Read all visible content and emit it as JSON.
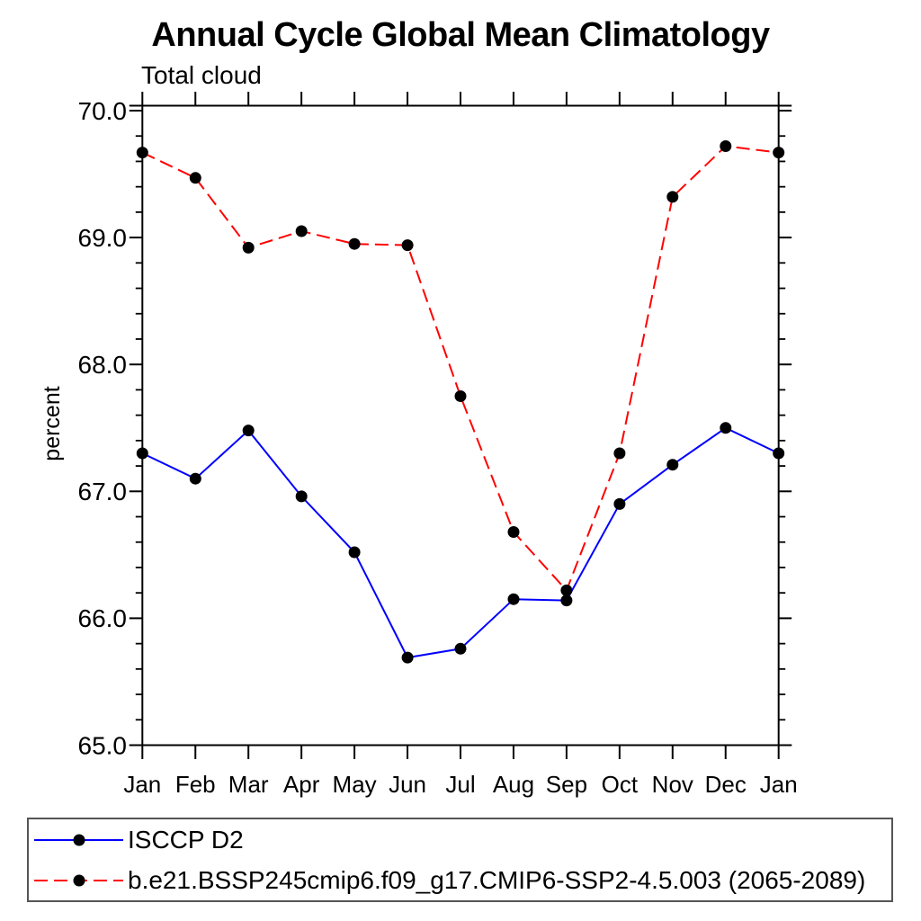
{
  "title": "Annual Cycle Global Mean Climatology",
  "subtitle": "Total cloud",
  "chart_data": {
    "type": "line",
    "title": "Annual Cycle Global Mean Climatology",
    "subtitle": "Total cloud",
    "xlabel": "",
    "ylabel": "percent",
    "ylim": [
      65.0,
      70.0
    ],
    "ytick_values": [
      65,
      66,
      67,
      68,
      69,
      70
    ],
    "ytick_labels": [
      "65.0",
      "66.0",
      "67.0",
      "68.0",
      "69.0",
      "70.0"
    ],
    "yminor_step": 0.2,
    "grid": false,
    "legend_position": "bottom-box",
    "categories": [
      "Jan",
      "Feb",
      "Mar",
      "Apr",
      "May",
      "Jun",
      "Jul",
      "Aug",
      "Sep",
      "Oct",
      "Nov",
      "Dec",
      "Jan"
    ],
    "series": [
      {
        "name": "ISCCP D2",
        "color": "#0000ff",
        "line_style": "solid",
        "marker": "filled-circle",
        "marker_color": "#000000",
        "values": [
          67.3,
          67.1,
          67.48,
          66.96,
          66.52,
          65.69,
          65.76,
          66.15,
          66.14,
          66.9,
          67.21,
          67.5,
          67.3
        ]
      },
      {
        "name": "b.e21.BSSP245cmip6.f09_g17.CMIP6-SSP2-4.5.003 (2065-2089)",
        "color": "#ff0000",
        "line_style": "dashed",
        "marker": "filled-circle",
        "marker_color": "#000000",
        "values": [
          69.67,
          69.47,
          68.92,
          69.05,
          68.95,
          68.94,
          67.75,
          66.68,
          66.22,
          67.3,
          69.32,
          69.72,
          69.67
        ]
      }
    ]
  },
  "colors": {
    "axis": "#000000",
    "text": "#000000",
    "legend_border": "#555555",
    "background": "#ffffff"
  }
}
